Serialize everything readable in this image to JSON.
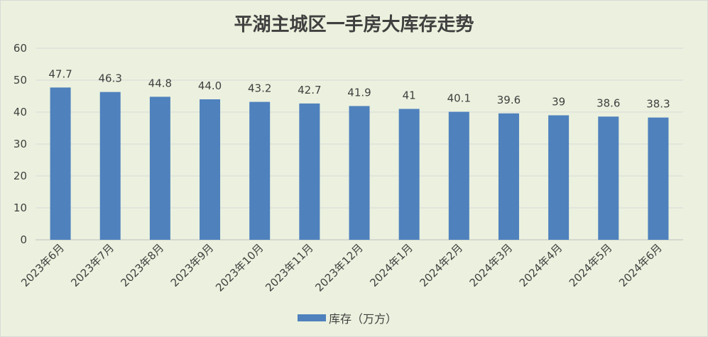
{
  "chart_data": {
    "type": "bar",
    "title": "平湖主城区一手房大库存走势",
    "categories": [
      "2023年6月",
      "2023年7月",
      "2023年8月",
      "2023年9月",
      "2023年10月",
      "2023年11月",
      "2023年12月",
      "2024年1月",
      "2024年2月",
      "2024年3月",
      "2024年4月",
      "2024年5月",
      "2024年6月"
    ],
    "series": [
      {
        "name": "库存（万方）",
        "values": [
          47.7,
          46.3,
          44.8,
          44.0,
          43.2,
          42.7,
          41.9,
          41,
          40.1,
          39.6,
          39,
          38.6,
          38.3
        ],
        "labels": [
          "47.7",
          "46.3",
          "44.8",
          "44.0",
          "43.2",
          "42.7",
          "41.9",
          "41",
          "40.1",
          "39.6",
          "39",
          "38.6",
          "38.3"
        ]
      }
    ],
    "ylim": [
      0,
      60
    ],
    "yticks": [
      "0",
      "10",
      "20",
      "30",
      "40",
      "50",
      "60"
    ],
    "grid": true,
    "legend_position": "bottom",
    "bar_color": "#4f81bd"
  }
}
